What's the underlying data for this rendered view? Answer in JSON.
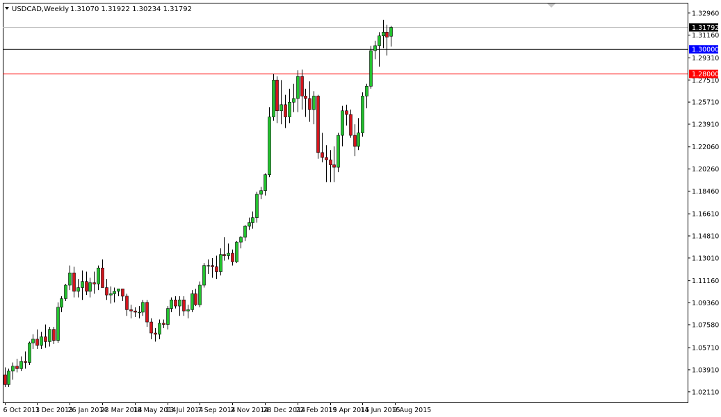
{
  "header": {
    "symbol": "USDCAD,Weekly",
    "ohlc": "1.31070 1.31922 1.30234 1.31792"
  },
  "colors": {
    "background": "#ffffff",
    "frame": "#000000",
    "bull_body": "#22c22e",
    "bear_body": "#d2141c",
    "wick": "#000000",
    "last_price_line": "#c0c0c0",
    "level_1_30000": "#000000",
    "level_1_28000": "#ff0000",
    "level_1_30000_tag": "#0000ff",
    "level_1_28000_tag": "#ff0000"
  },
  "chart_data": {
    "type": "candlestick",
    "title": "USDCAD,Weekly",
    "ohlc_readout": "1.31070 1.31922 1.30234 1.31792",
    "ylim": [
      1.0125,
      1.3374
    ],
    "y_ticks": [
      "1.32960",
      "1.31160",
      "1.29310",
      "1.27510",
      "1.25710",
      "1.23910",
      "1.22060",
      "1.20260",
      "1.18460",
      "1.16610",
      "1.14810",
      "1.13010",
      "1.11160",
      "1.09360",
      "1.07580",
      "1.05710",
      "1.03910",
      "1.02110"
    ],
    "x_tick_labels": [
      "6 Oct 2013",
      "1 Dec 2013",
      "26 Jan 2014",
      "23 Mar 2014",
      "18 May 2014",
      "13 Jul 2014",
      "7 Sep 2014",
      "2 Nov 2014",
      "28 Dec 2014",
      "22 Feb 2015",
      "19 Apr 2015",
      "14 Jun 2015",
      "9 Aug 2015"
    ],
    "weeks_per_label": 8,
    "horizontal_levels": [
      {
        "price": 1.3,
        "label": "1.30000",
        "style": "black"
      },
      {
        "price": 1.28,
        "label": "1.28000",
        "style": "red"
      }
    ],
    "last_price": {
      "price": 1.31792,
      "label": "1.31792"
    },
    "candles": [
      [
        1.035,
        1.041,
        1.025,
        1.027
      ],
      [
        1.027,
        1.04,
        1.025,
        1.038
      ],
      [
        1.038,
        1.045,
        1.031,
        1.042
      ],
      [
        1.042,
        1.048,
        1.037,
        1.04
      ],
      [
        1.04,
        1.05,
        1.038,
        1.046
      ],
      [
        1.046,
        1.054,
        1.04,
        1.045
      ],
      [
        1.045,
        1.062,
        1.043,
        1.061
      ],
      [
        1.061,
        1.068,
        1.056,
        1.064
      ],
      [
        1.064,
        1.072,
        1.056,
        1.059
      ],
      [
        1.059,
        1.07,
        1.056,
        1.066
      ],
      [
        1.066,
        1.076,
        1.057,
        1.062
      ],
      [
        1.062,
        1.074,
        1.058,
        1.072
      ],
      [
        1.072,
        1.074,
        1.06,
        1.063
      ],
      [
        1.063,
        1.094,
        1.061,
        1.09
      ],
      [
        1.09,
        1.099,
        1.086,
        1.097
      ],
      [
        1.097,
        1.109,
        1.095,
        1.108
      ],
      [
        1.108,
        1.124,
        1.104,
        1.118
      ],
      [
        1.118,
        1.123,
        1.098,
        1.103
      ],
      [
        1.103,
        1.113,
        1.098,
        1.106
      ],
      [
        1.106,
        1.12,
        1.096,
        1.111
      ],
      [
        1.111,
        1.119,
        1.1,
        1.103
      ],
      [
        1.103,
        1.114,
        1.098,
        1.11
      ],
      [
        1.11,
        1.119,
        1.101,
        1.109
      ],
      [
        1.109,
        1.124,
        1.104,
        1.122
      ],
      [
        1.122,
        1.129,
        1.108,
        1.106
      ],
      [
        1.106,
        1.113,
        1.096,
        1.1
      ],
      [
        1.1,
        1.107,
        1.093,
        1.101
      ],
      [
        1.101,
        1.106,
        1.094,
        1.103
      ],
      [
        1.103,
        1.105,
        1.099,
        1.105
      ],
      [
        1.105,
        1.105,
        1.095,
        1.099
      ],
      [
        1.099,
        1.101,
        1.083,
        1.088
      ],
      [
        1.088,
        1.092,
        1.081,
        1.087
      ],
      [
        1.087,
        1.09,
        1.082,
        1.086
      ],
      [
        1.086,
        1.091,
        1.081,
        1.086
      ],
      [
        1.086,
        1.096,
        1.083,
        1.094
      ],
      [
        1.094,
        1.096,
        1.074,
        1.078
      ],
      [
        1.078,
        1.081,
        1.064,
        1.069
      ],
      [
        1.069,
        1.073,
        1.062,
        1.068
      ],
      [
        1.068,
        1.08,
        1.064,
        1.077
      ],
      [
        1.077,
        1.08,
        1.073,
        1.076
      ],
      [
        1.076,
        1.091,
        1.072,
        1.089
      ],
      [
        1.089,
        1.098,
        1.086,
        1.096
      ],
      [
        1.096,
        1.099,
        1.089,
        1.091
      ],
      [
        1.091,
        1.099,
        1.083,
        1.096
      ],
      [
        1.096,
        1.099,
        1.083,
        1.087
      ],
      [
        1.087,
        1.092,
        1.081,
        1.088
      ],
      [
        1.088,
        1.104,
        1.086,
        1.101
      ],
      [
        1.101,
        1.105,
        1.091,
        1.092
      ],
      [
        1.092,
        1.111,
        1.09,
        1.108
      ],
      [
        1.108,
        1.126,
        1.106,
        1.124
      ],
      [
        1.124,
        1.129,
        1.117,
        1.124
      ],
      [
        1.124,
        1.13,
        1.114,
        1.123
      ],
      [
        1.123,
        1.132,
        1.113,
        1.119
      ],
      [
        1.119,
        1.138,
        1.116,
        1.133
      ],
      [
        1.133,
        1.147,
        1.128,
        1.132
      ],
      [
        1.132,
        1.142,
        1.129,
        1.134
      ],
      [
        1.134,
        1.137,
        1.124,
        1.127
      ],
      [
        1.127,
        1.144,
        1.126,
        1.143
      ],
      [
        1.143,
        1.148,
        1.138,
        1.147
      ],
      [
        1.147,
        1.157,
        1.144,
        1.156
      ],
      [
        1.156,
        1.163,
        1.153,
        1.159
      ],
      [
        1.159,
        1.168,
        1.154,
        1.163
      ],
      [
        1.163,
        1.184,
        1.159,
        1.182
      ],
      [
        1.182,
        1.188,
        1.178,
        1.185
      ],
      [
        1.185,
        1.199,
        1.181,
        1.198
      ],
      [
        1.198,
        1.253,
        1.196,
        1.245
      ],
      [
        1.245,
        1.28,
        1.242,
        1.275
      ],
      [
        1.275,
        1.278,
        1.24,
        1.25
      ],
      [
        1.25,
        1.275,
        1.239,
        1.255
      ],
      [
        1.255,
        1.263,
        1.236,
        1.245
      ],
      [
        1.245,
        1.268,
        1.24,
        1.257
      ],
      [
        1.257,
        1.272,
        1.249,
        1.26
      ],
      [
        1.26,
        1.283,
        1.249,
        1.278
      ],
      [
        1.278,
        1.2835,
        1.251,
        1.262
      ],
      [
        1.262,
        1.268,
        1.245,
        1.26
      ],
      [
        1.26,
        1.274,
        1.241,
        1.251
      ],
      [
        1.251,
        1.266,
        1.239,
        1.262
      ],
      [
        1.262,
        1.263,
        1.211,
        1.216
      ],
      [
        1.216,
        1.232,
        1.208,
        1.212
      ],
      [
        1.212,
        1.222,
        1.192,
        1.21
      ],
      [
        1.21,
        1.218,
        1.192,
        1.206
      ],
      [
        1.206,
        1.221,
        1.192,
        1.204
      ],
      [
        1.204,
        1.232,
        1.2,
        1.23
      ],
      [
        1.23,
        1.254,
        1.221,
        1.25
      ],
      [
        1.25,
        1.255,
        1.238,
        1.247
      ],
      [
        1.247,
        1.251,
        1.228,
        1.23
      ],
      [
        1.23,
        1.239,
        1.213,
        1.221
      ],
      [
        1.221,
        1.244,
        1.218,
        1.232
      ],
      [
        1.232,
        1.265,
        1.229,
        1.262
      ],
      [
        1.262,
        1.272,
        1.252,
        1.27
      ],
      [
        1.27,
        1.303,
        1.268,
        1.299
      ],
      [
        1.299,
        1.307,
        1.292,
        1.303
      ],
      [
        1.303,
        1.314,
        1.286,
        1.311
      ],
      [
        1.311,
        1.324,
        1.301,
        1.314
      ],
      [
        1.314,
        1.32,
        1.295,
        1.31
      ],
      [
        1.3107,
        1.3192,
        1.3023,
        1.3179
      ]
    ]
  }
}
